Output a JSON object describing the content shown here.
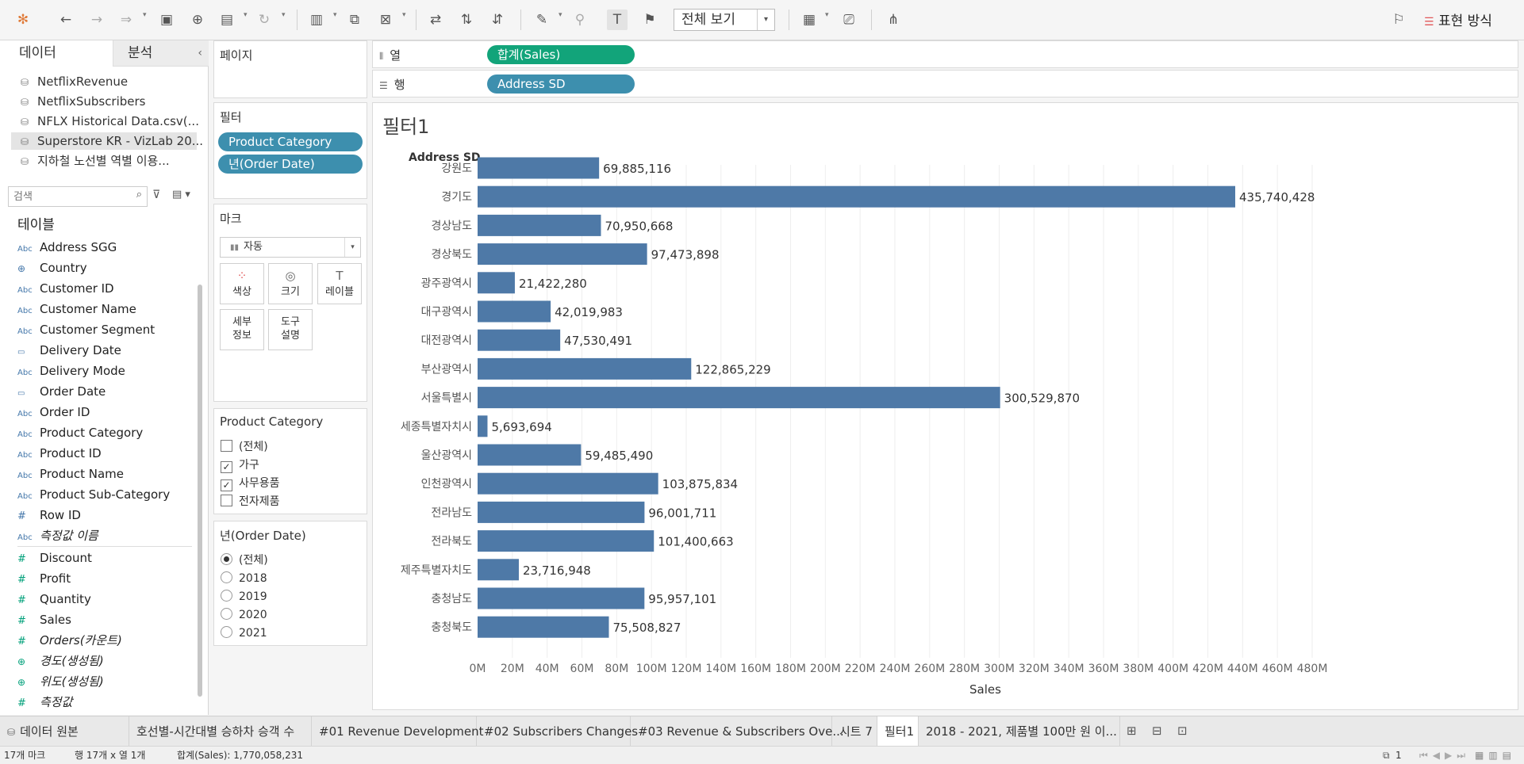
{
  "toolbar": {
    "view_select": "전체 보기",
    "show_me": "표현 방식",
    "icons": [
      "tableau-logo-icon",
      "undo-icon",
      "redo-icon",
      "replay-icon",
      "save-icon",
      "new-datasource-icon",
      "pause-autoupdate-icon",
      "refresh-icon",
      "new-worksheet-icon",
      "duplicate-sheet-icon",
      "clear-sheet-icon",
      "swap-icon",
      "sort-ascending-icon",
      "sort-descending-icon",
      "highlight-icon",
      "group-icon",
      "show-labels-icon",
      "fix-axes-icon",
      "show-cards-icon",
      "presentation-icon",
      "share-icon",
      "pin-icon"
    ]
  },
  "data_pane": {
    "tab_data": "데이터",
    "tab_analysis": "분석",
    "datasources": [
      "NetflixRevenue",
      "NetflixSubscribers",
      "NFLX Historical Data.csv(...",
      "Superstore KR - VizLab 20...",
      "지하철 노선별 역별 이용..."
    ],
    "search_placeholder": "검색",
    "tables_label": "테이블",
    "dimensions": [
      {
        "name": "Address SGG",
        "type": "Abc"
      },
      {
        "name": "Country",
        "type": "geo"
      },
      {
        "name": "Customer ID",
        "type": "Abc"
      },
      {
        "name": "Customer Name",
        "type": "Abc"
      },
      {
        "name": "Customer Segment",
        "type": "Abc"
      },
      {
        "name": "Delivery Date",
        "type": "date"
      },
      {
        "name": "Delivery Mode",
        "type": "Abc"
      },
      {
        "name": "Order Date",
        "type": "date"
      },
      {
        "name": "Order ID",
        "type": "Abc"
      },
      {
        "name": "Product Category",
        "type": "Abc"
      },
      {
        "name": "Product ID",
        "type": "Abc"
      },
      {
        "name": "Product Name",
        "type": "Abc"
      },
      {
        "name": "Product Sub-Category",
        "type": "Abc"
      },
      {
        "name": "Row ID",
        "type": "#"
      },
      {
        "name": "측정값 이름",
        "type": "Abc",
        "italic": true
      }
    ],
    "measures": [
      {
        "name": "Discount",
        "type": "#"
      },
      {
        "name": "Profit",
        "type": "#"
      },
      {
        "name": "Quantity",
        "type": "#"
      },
      {
        "name": "Sales",
        "type": "#"
      },
      {
        "name": "Orders(카운트)",
        "type": "#",
        "italic": true
      },
      {
        "name": "경도(생성됨)",
        "type": "geo",
        "italic": true
      },
      {
        "name": "위도(생성됨)",
        "type": "geo",
        "italic": true
      },
      {
        "name": "측정값",
        "type": "#",
        "italic": true
      }
    ]
  },
  "pages": {
    "title": "페이지"
  },
  "filters": {
    "title": "필터",
    "pills": [
      "Product Category",
      "년(Order Date)"
    ]
  },
  "marks": {
    "title": "마크",
    "type": "자동",
    "buttons": [
      [
        "색상",
        "color"
      ],
      [
        "크기",
        "size"
      ],
      [
        "레이블",
        "label"
      ],
      [
        "세부\n정보",
        "detail"
      ],
      [
        "도구\n설명",
        "tooltip"
      ]
    ]
  },
  "product_category_filter": {
    "title": "Product Category",
    "options": [
      {
        "label": "(전체)",
        "checked": false
      },
      {
        "label": "가구",
        "checked": true
      },
      {
        "label": "사무용품",
        "checked": true
      },
      {
        "label": "전자제품",
        "checked": false
      }
    ]
  },
  "year_filter": {
    "title": "년(Order Date)",
    "options": [
      {
        "label": "(전체)",
        "selected": true
      },
      {
        "label": "2018",
        "selected": false
      },
      {
        "label": "2019",
        "selected": false
      },
      {
        "label": "2020",
        "selected": false
      },
      {
        "label": "2021",
        "selected": false
      }
    ]
  },
  "shelves": {
    "columns_label": "열",
    "columns_pill": "합계(Sales)",
    "rows_label": "행",
    "rows_pill": "Address SD"
  },
  "chart_data": {
    "type": "bar",
    "orientation": "horizontal",
    "title": "필터1",
    "ylabel": "Address SD",
    "xlabel": "Sales",
    "categories": [
      "강원도",
      "경기도",
      "경상남도",
      "경상북도",
      "광주광역시",
      "대구광역시",
      "대전광역시",
      "부산광역시",
      "서울특별시",
      "세종특별자치시",
      "울산광역시",
      "인천광역시",
      "전라남도",
      "전라북도",
      "제주특별자치도",
      "충청남도",
      "충청북도"
    ],
    "values": [
      69885116,
      435740428,
      70950668,
      97473898,
      21422280,
      42019983,
      47530491,
      122865229,
      300529870,
      5693694,
      59485490,
      103875834,
      96001711,
      101400663,
      23716948,
      95957101,
      75508827
    ],
    "value_labels": [
      "69,885,116",
      "435,740,428",
      "70,950,668",
      "97,473,898",
      "21,422,280",
      "42,019,983",
      "47,530,491",
      "122,865,229",
      "300,529,870",
      "5,693,694",
      "59,485,490",
      "103,875,834",
      "96,001,711",
      "101,400,663",
      "23,716,948",
      "95,957,101",
      "75,508,827"
    ],
    "xticks": [
      "0M",
      "20M",
      "40M",
      "60M",
      "80M",
      "100M",
      "120M",
      "140M",
      "160M",
      "180M",
      "200M",
      "220M",
      "240M",
      "260M",
      "280M",
      "300M",
      "320M",
      "340M",
      "360M",
      "380M",
      "400M",
      "420M",
      "440M",
      "460M",
      "480M"
    ],
    "xlim": [
      0,
      480000000
    ],
    "bar_color": "#4e79a7",
    "grid": true
  },
  "tabs": {
    "items": [
      "데이터 원본",
      "호선별-시간대별 승하차 승객 수",
      "#01 Revenue Development",
      "#02 Subscribers Changes",
      "#03 Revenue & Subscribers Ove...",
      "시트 7",
      "필터1",
      "2018 - 2021, 제품별 100만 원 이..."
    ],
    "active": "필터1"
  },
  "status": {
    "marks": "17개 마크",
    "rows_cols": "행 17개 x 열 1개",
    "sum": "합계(Sales): 1,770,058,231",
    "page": "1"
  }
}
